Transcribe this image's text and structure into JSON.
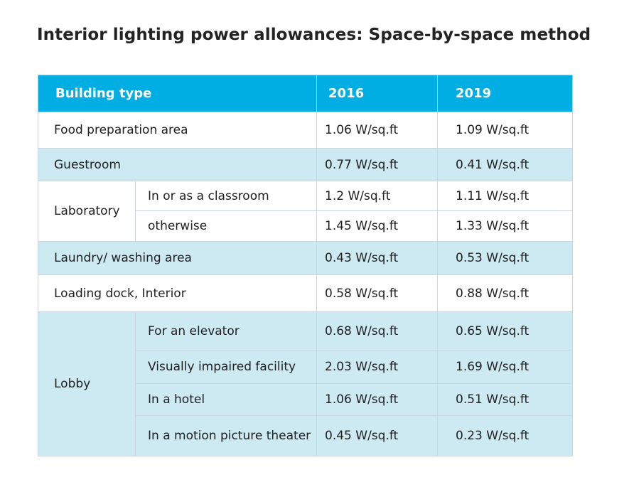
{
  "title": "Interior lighting power allowances: Space-by-space method",
  "table": {
    "headers": {
      "type": "Building type",
      "y1": "2016",
      "y2": "2019"
    },
    "rows": {
      "food": {
        "name": "Food preparation area",
        "v2016": "1.06 W/sq.ft",
        "v2019": "1.09 W/sq.ft"
      },
      "guest": {
        "name": "Guestroom",
        "v2016": "0.77 W/sq.ft",
        "v2019": "0.41 W/sq.ft"
      },
      "lab": {
        "name": "Laboratory",
        "sub1": {
          "name": "In or as a classroom",
          "v2016": "1.2 W/sq.ft",
          "v2019": "1.11 W/sq.ft"
        },
        "sub2": {
          "name": "otherwise",
          "v2016": "1.45 W/sq.ft",
          "v2019": "1.33 W/sq.ft"
        }
      },
      "laundry": {
        "name": "Laundry/ washing area",
        "v2016": "0.43 W/sq.ft",
        "v2019": "0.53 W/sq.ft"
      },
      "loading": {
        "name": "Loading dock, Interior",
        "v2016": "0.58 W/sq.ft",
        "v2019": "0.88 W/sq.ft"
      },
      "lobby": {
        "name": "Lobby",
        "sub1": {
          "name": "For an elevator",
          "v2016": "0.68 W/sq.ft",
          "v2019": "0.65 W/sq.ft"
        },
        "sub2": {
          "name": "Visually impaired facility",
          "v2016": "2.03 W/sq.ft",
          "v2019": "1.69 W/sq.ft"
        },
        "sub3": {
          "name": "In a hotel",
          "v2016": "1.06 W/sq.ft",
          "v2019": "0.51 W/sq.ft"
        },
        "sub4": {
          "name": "In a motion picture theater",
          "v2016": "0.45 W/sq.ft",
          "v2019": "0.23 W/sq.ft"
        }
      }
    }
  },
  "colors": {
    "header_bg": "#00aee4",
    "band_bg": "#cde9f2",
    "header_text": "#ffffff"
  }
}
